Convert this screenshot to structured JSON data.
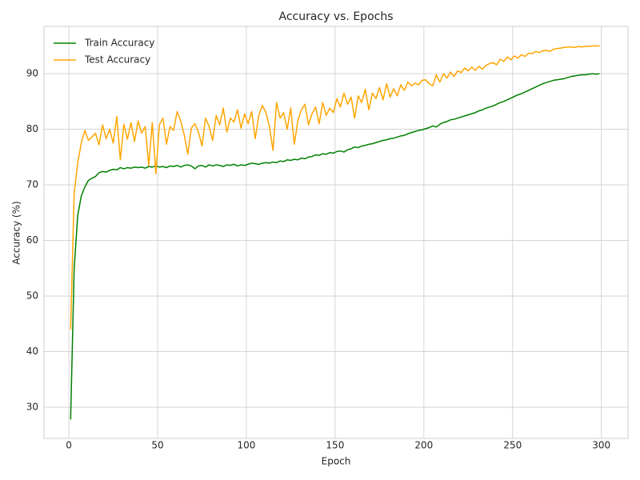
{
  "chart_data": {
    "type": "line",
    "title": "Accuracy vs. Epochs",
    "x_label": "Epoch",
    "y_label": "Accuracy (%)",
    "x": [
      1,
      3,
      5,
      7,
      9,
      11,
      13,
      15,
      17,
      19,
      21,
      23,
      25,
      27,
      29,
      31,
      33,
      35,
      37,
      39,
      41,
      43,
      45,
      47,
      49,
      51,
      53,
      55,
      57,
      59,
      61,
      63,
      65,
      67,
      69,
      71,
      73,
      75,
      77,
      79,
      81,
      83,
      85,
      87,
      89,
      91,
      93,
      95,
      97,
      99,
      101,
      103,
      105,
      107,
      109,
      111,
      113,
      115,
      117,
      119,
      121,
      123,
      125,
      127,
      129,
      131,
      133,
      135,
      137,
      139,
      141,
      143,
      145,
      147,
      149,
      151,
      153,
      155,
      157,
      159,
      161,
      163,
      165,
      167,
      169,
      171,
      173,
      175,
      177,
      179,
      181,
      183,
      185,
      187,
      189,
      191,
      193,
      195,
      197,
      199,
      201,
      203,
      205,
      207,
      209,
      211,
      213,
      215,
      217,
      219,
      221,
      223,
      225,
      227,
      229,
      231,
      233,
      235,
      237,
      239,
      241,
      243,
      245,
      247,
      249,
      251,
      253,
      255,
      257,
      259,
      261,
      263,
      265,
      267,
      269,
      271,
      273,
      275,
      277,
      279,
      281,
      283,
      285,
      287,
      289,
      291,
      293,
      295,
      297,
      299
    ],
    "series": [
      {
        "name": "Train Accuracy",
        "color": "#008000",
        "values": [
          27.8,
          55.0,
          64.5,
          68.0,
          69.6,
          70.8,
          71.2,
          71.5,
          72.2,
          72.4,
          72.3,
          72.6,
          72.8,
          72.7,
          73.1,
          72.9,
          73.1,
          73.0,
          73.2,
          73.1,
          73.2,
          73.0,
          73.3,
          73.2,
          73.4,
          73.2,
          73.3,
          73.1,
          73.4,
          73.3,
          73.5,
          73.2,
          73.5,
          73.6,
          73.4,
          72.9,
          73.4,
          73.5,
          73.2,
          73.6,
          73.4,
          73.6,
          73.5,
          73.3,
          73.6,
          73.5,
          73.7,
          73.4,
          73.6,
          73.5,
          73.7,
          73.9,
          73.8,
          73.7,
          73.9,
          74.0,
          73.9,
          74.1,
          74.0,
          74.3,
          74.2,
          74.5,
          74.4,
          74.6,
          74.5,
          74.8,
          74.7,
          75.0,
          75.1,
          75.4,
          75.3,
          75.6,
          75.5,
          75.8,
          75.7,
          76.0,
          76.1,
          75.9,
          76.3,
          76.5,
          76.8,
          76.7,
          77.0,
          77.1,
          77.3,
          77.4,
          77.6,
          77.8,
          78.0,
          78.1,
          78.3,
          78.4,
          78.6,
          78.8,
          78.9,
          79.2,
          79.4,
          79.6,
          79.8,
          79.9,
          80.1,
          80.3,
          80.6,
          80.4,
          80.9,
          81.2,
          81.4,
          81.7,
          81.8,
          82.0,
          82.2,
          82.4,
          82.6,
          82.8,
          83.0,
          83.3,
          83.5,
          83.8,
          84.0,
          84.2,
          84.5,
          84.8,
          85.0,
          85.3,
          85.6,
          85.9,
          86.2,
          86.4,
          86.7,
          87.0,
          87.3,
          87.6,
          87.9,
          88.2,
          88.4,
          88.6,
          88.8,
          88.9,
          89.0,
          89.1,
          89.3,
          89.5,
          89.6,
          89.7,
          89.8,
          89.8,
          89.9,
          90.0,
          89.9,
          90.0
        ]
      },
      {
        "name": "Test Accuracy",
        "color": "#ffa500",
        "values": [
          44.0,
          68.5,
          74.0,
          77.5,
          79.8,
          78.0,
          78.6,
          79.3,
          77.2,
          80.8,
          78.3,
          80.0,
          77.5,
          82.3,
          74.5,
          80.9,
          78.2,
          81.2,
          77.8,
          81.5,
          79.3,
          80.5,
          73.5,
          81.2,
          72.0,
          80.8,
          82.0,
          77.3,
          80.5,
          79.8,
          83.2,
          81.5,
          79.0,
          75.5,
          80.2,
          81.0,
          79.5,
          77.0,
          82.0,
          80.5,
          78.0,
          82.5,
          80.8,
          83.8,
          79.5,
          82.0,
          81.3,
          83.5,
          80.2,
          82.8,
          81.0,
          83.2,
          78.3,
          82.5,
          84.3,
          83.0,
          80.5,
          76.2,
          84.8,
          82.0,
          83.0,
          80.0,
          83.8,
          77.3,
          81.5,
          83.5,
          84.5,
          80.8,
          82.8,
          84.0,
          81.0,
          84.8,
          82.5,
          83.8,
          83.0,
          85.5,
          84.0,
          86.5,
          84.5,
          85.8,
          82.0,
          86.0,
          84.8,
          87.2,
          83.5,
          86.5,
          85.5,
          87.5,
          85.3,
          88.2,
          85.8,
          87.3,
          86.0,
          88.0,
          87.0,
          88.5,
          87.8,
          88.3,
          88.0,
          88.8,
          88.9,
          88.2,
          87.8,
          89.8,
          88.5,
          90.0,
          89.2,
          90.3,
          89.5,
          90.5,
          90.2,
          91.0,
          90.5,
          91.2,
          90.6,
          91.3,
          90.8,
          91.5,
          91.8,
          92.0,
          91.6,
          92.6,
          92.2,
          93.0,
          92.5,
          93.2,
          92.8,
          93.4,
          93.1,
          93.7,
          93.6,
          94.0,
          93.8,
          94.1,
          94.2,
          94.0,
          94.4,
          94.5,
          94.6,
          94.7,
          94.8,
          94.8,
          94.7,
          94.9,
          94.8,
          94.9,
          94.9,
          95.0,
          95.0,
          95.0
        ]
      }
    ],
    "xlim": [
      -14,
      315
    ],
    "xticks": [
      0,
      50,
      100,
      150,
      200,
      250,
      300
    ],
    "ylim": [
      24.4,
      98.5
    ],
    "yticks": [
      30,
      40,
      50,
      60,
      70,
      80,
      90
    ],
    "grid": true,
    "legend": "upper left"
  }
}
